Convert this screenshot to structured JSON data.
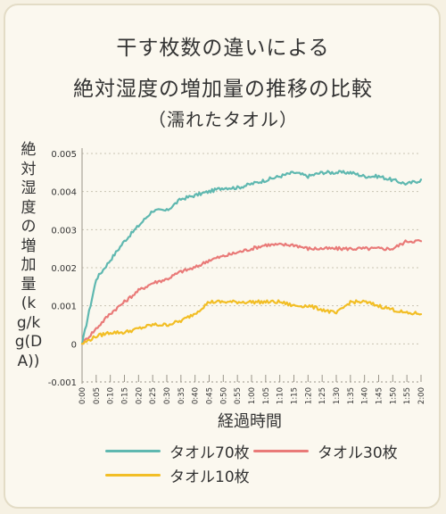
{
  "title": {
    "line1": "干す枚数の違いによる",
    "line2": "絶対湿度の増加量の推移の比較",
    "line3": "（濡れたタオル）"
  },
  "chart_data": {
    "type": "line",
    "title": "干す枚数の違いによる 絶対湿度の増加量の推移の比較 （濡れたタオル）",
    "xlabel": "経過時間",
    "ylabel": "絶対湿度の増加量(kg/kg(DA))",
    "ylim": [
      -0.001,
      0.005
    ],
    "yticks": [
      "0.005",
      "0.004",
      "0.003",
      "0.002",
      "0.001",
      "0",
      "-0.001"
    ],
    "xticks": [
      "0:00",
      "0:05",
      "0:10",
      "0:15",
      "0:20",
      "0:25",
      "0:30",
      "0:35",
      "0:40",
      "0:45",
      "0:50",
      "0:55",
      "1:00",
      "1:05",
      "1:10",
      "1:15",
      "1:20",
      "1:25",
      "1:30",
      "1:35",
      "1:40",
      "1:45",
      "1:50",
      "1:55",
      "2:00"
    ],
    "x_minutes": [
      0,
      5,
      10,
      15,
      20,
      25,
      30,
      35,
      40,
      45,
      50,
      55,
      60,
      65,
      70,
      75,
      80,
      85,
      90,
      95,
      100,
      105,
      110,
      115,
      120
    ],
    "grid": true,
    "legend_position": "bottom",
    "series": [
      {
        "name": "タオル70枚",
        "color": "#5fb8b0",
        "values": [
          0,
          0.0017,
          0.0022,
          0.0027,
          0.0031,
          0.0035,
          0.0035,
          0.0038,
          0.0039,
          0.004,
          0.0041,
          0.0041,
          0.0042,
          0.0043,
          0.0044,
          0.0045,
          0.0044,
          0.0045,
          0.0045,
          0.0045,
          0.0044,
          0.0044,
          0.0043,
          0.0042,
          0.0043
        ]
      },
      {
        "name": "タオル30枚",
        "color": "#e97a78",
        "values": [
          0,
          0.0004,
          0.0008,
          0.0011,
          0.0014,
          0.0016,
          0.0017,
          0.0019,
          0.002,
          0.0022,
          0.0023,
          0.0024,
          0.0025,
          0.0026,
          0.0026,
          0.0026,
          0.0025,
          0.0025,
          0.0025,
          0.0025,
          0.0025,
          0.0025,
          0.0025,
          0.0027,
          0.0027
        ]
      },
      {
        "name": "タオル10枚",
        "color": "#f2be25",
        "values": [
          0,
          0.0002,
          0.0003,
          0.0003,
          0.0004,
          0.0005,
          0.0005,
          0.0006,
          0.0008,
          0.0011,
          0.0011,
          0.0011,
          0.0011,
          0.0011,
          0.0011,
          0.001,
          0.001,
          0.0009,
          0.0008,
          0.0011,
          0.0011,
          0.001,
          0.0009,
          0.0008,
          0.0008
        ]
      }
    ]
  },
  "legend": {
    "item1": "タオル70枚",
    "item2": "タオル30枚",
    "item3": "タオル10枚"
  }
}
